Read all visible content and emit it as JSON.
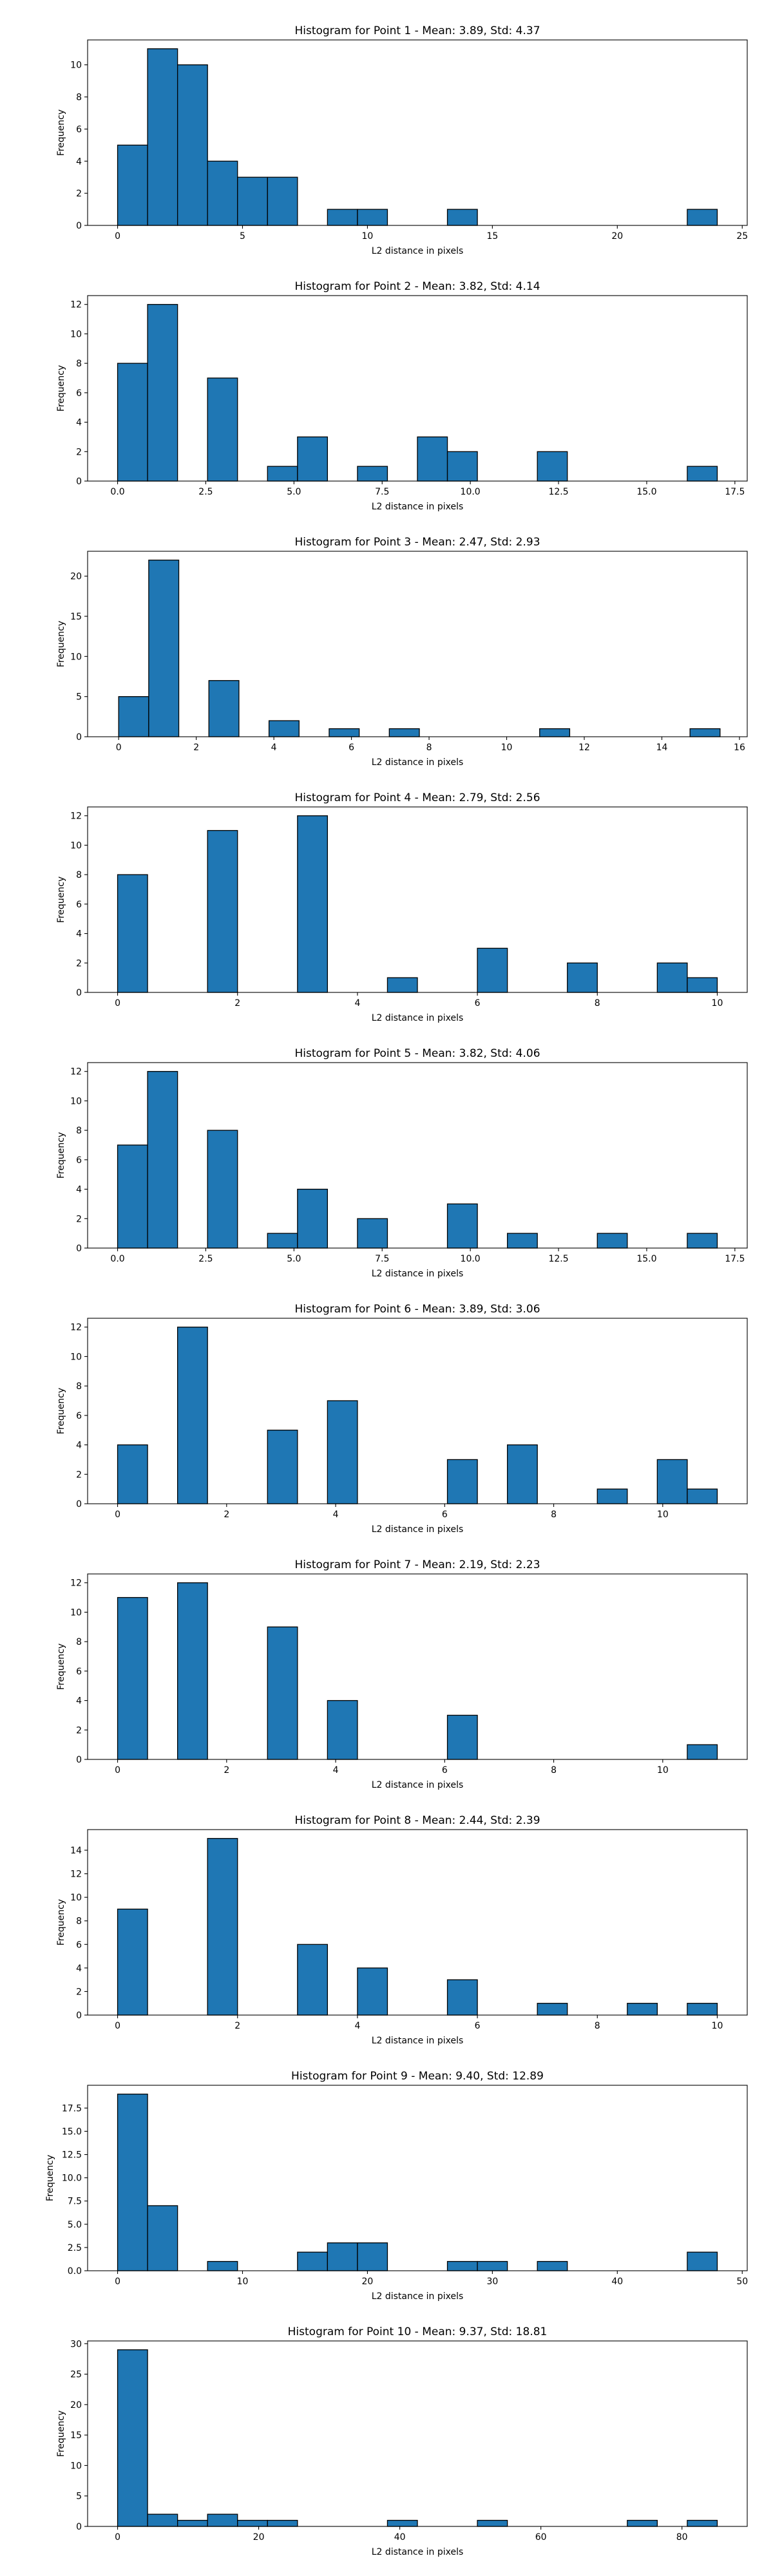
{
  "figure": {
    "bar_color": "#1f77b4",
    "edge_color": "#000000"
  },
  "chart_data": [
    {
      "type": "bar",
      "title": "Histogram for Point 1 - Mean: 3.89, Std: 4.37",
      "xlabel": "L2 distance in pixels",
      "ylabel": "Frequency",
      "xlim": [
        -1.2,
        25.2
      ],
      "ylim": [
        0,
        11.55
      ],
      "xticks": [
        0,
        5,
        10,
        15,
        20,
        25
      ],
      "xtick_labels": [
        "0",
        "5",
        "10",
        "15",
        "20",
        "25"
      ],
      "yticks": [
        0,
        2,
        4,
        6,
        8,
        10
      ],
      "ytick_labels": [
        "0",
        "2",
        "4",
        "6",
        "8",
        "10"
      ],
      "bin_edges": [
        0,
        1.2,
        2.4,
        3.6,
        4.8,
        6,
        7.2,
        8.4,
        9.6,
        10.8,
        12,
        13.2,
        14.4,
        15.6,
        16.8,
        18,
        19.2,
        20.4,
        21.6,
        22.8,
        24
      ],
      "values": [
        5,
        11,
        10,
        4,
        3,
        3,
        0,
        1,
        1,
        0,
        0,
        1,
        0,
        0,
        0,
        0,
        0,
        0,
        0,
        1
      ]
    },
    {
      "type": "bar",
      "title": "Histogram for Point 2 - Mean: 3.82, Std: 4.14",
      "xlabel": "L2 distance in pixels",
      "ylabel": "Frequency",
      "xlim": [
        -0.85,
        17.85
      ],
      "ylim": [
        0,
        12.6
      ],
      "xticks": [
        0,
        2.5,
        5,
        7.5,
        10,
        12.5,
        15,
        17.5
      ],
      "xtick_labels": [
        "0.0",
        "2.5",
        "5.0",
        "7.5",
        "10.0",
        "12.5",
        "15.0",
        "17.5"
      ],
      "yticks": [
        0,
        2,
        4,
        6,
        8,
        10,
        12
      ],
      "ytick_labels": [
        "0",
        "2",
        "4",
        "6",
        "8",
        "10",
        "12"
      ],
      "bin_edges": [
        0,
        0.85,
        1.7,
        2.55,
        3.4,
        4.25,
        5.1,
        5.95,
        6.8,
        7.65,
        8.5,
        9.35,
        10.2,
        11.05,
        11.9,
        12.75,
        13.6,
        14.45,
        15.3,
        16.15,
        17
      ],
      "values": [
        8,
        12,
        0,
        7,
        0,
        1,
        3,
        0,
        1,
        0,
        3,
        2,
        0,
        0,
        2,
        0,
        0,
        0,
        0,
        1
      ]
    },
    {
      "type": "bar",
      "title": "Histogram for Point 3 - Mean: 2.47, Std: 2.93",
      "xlabel": "L2 distance in pixels",
      "ylabel": "Frequency",
      "xlim": [
        -0.8,
        16.2
      ],
      "ylim": [
        0,
        23.1
      ],
      "xticks": [
        0,
        2,
        4,
        6,
        8,
        10,
        12,
        14,
        16
      ],
      "xtick_labels": [
        "0",
        "2",
        "4",
        "6",
        "8",
        "10",
        "12",
        "14",
        "16"
      ],
      "yticks": [
        0,
        5,
        10,
        15,
        20
      ],
      "ytick_labels": [
        "0",
        "5",
        "10",
        "15",
        "20"
      ],
      "bin_edges": [
        0,
        0.775,
        1.55,
        2.325,
        3.1,
        3.875,
        4.65,
        5.425,
        6.2,
        6.975,
        7.75,
        8.525,
        9.3,
        10.075,
        10.85,
        11.625,
        12.4,
        13.175,
        13.95,
        14.725,
        15.5
      ],
      "values": [
        5,
        22,
        0,
        7,
        0,
        2,
        0,
        1,
        0,
        1,
        0,
        0,
        0,
        0,
        1,
        0,
        0,
        0,
        0,
        1
      ]
    },
    {
      "type": "bar",
      "title": "Histogram for Point 4 - Mean: 2.79, Std: 2.56",
      "xlabel": "L2 distance in pixels",
      "ylabel": "Frequency",
      "xlim": [
        -0.5,
        10.5
      ],
      "ylim": [
        0,
        12.6
      ],
      "xticks": [
        0,
        2,
        4,
        6,
        8,
        10
      ],
      "xtick_labels": [
        "0",
        "2",
        "4",
        "6",
        "8",
        "10"
      ],
      "yticks": [
        0,
        2,
        4,
        6,
        8,
        10,
        12
      ],
      "ytick_labels": [
        "0",
        "2",
        "4",
        "6",
        "8",
        "10",
        "12"
      ],
      "bin_edges": [
        0,
        0.5,
        1,
        1.5,
        2,
        2.5,
        3,
        3.5,
        4,
        4.5,
        5,
        5.5,
        6,
        6.5,
        7,
        7.5,
        8,
        8.5,
        9,
        9.5,
        10
      ],
      "values": [
        8,
        0,
        0,
        11,
        0,
        0,
        12,
        0,
        0,
        1,
        0,
        0,
        3,
        0,
        0,
        2,
        0,
        0,
        2,
        1
      ]
    },
    {
      "type": "bar",
      "title": "Histogram for Point 5 - Mean: 3.82, Std: 4.06",
      "xlabel": "L2 distance in pixels",
      "ylabel": "Frequency",
      "xlim": [
        -0.85,
        17.85
      ],
      "ylim": [
        0,
        12.6
      ],
      "xticks": [
        0,
        2.5,
        5,
        7.5,
        10,
        12.5,
        15,
        17.5
      ],
      "xtick_labels": [
        "0.0",
        "2.5",
        "5.0",
        "7.5",
        "10.0",
        "12.5",
        "15.0",
        "17.5"
      ],
      "yticks": [
        0,
        2,
        4,
        6,
        8,
        10,
        12
      ],
      "ytick_labels": [
        "0",
        "2",
        "4",
        "6",
        "8",
        "10",
        "12"
      ],
      "bin_edges": [
        0,
        0.85,
        1.7,
        2.55,
        3.4,
        4.25,
        5.1,
        5.95,
        6.8,
        7.65,
        8.5,
        9.35,
        10.2,
        11.05,
        11.9,
        12.75,
        13.6,
        14.45,
        15.3,
        16.15,
        17
      ],
      "values": [
        7,
        12,
        0,
        8,
        0,
        1,
        4,
        0,
        2,
        0,
        0,
        3,
        0,
        1,
        0,
        0,
        1,
        0,
        0,
        1
      ]
    },
    {
      "type": "bar",
      "title": "Histogram for Point 6 - Mean: 3.89, Std: 3.06",
      "xlabel": "L2 distance in pixels",
      "ylabel": "Frequency",
      "xlim": [
        -0.55,
        11.55
      ],
      "ylim": [
        0,
        12.6
      ],
      "xticks": [
        0,
        2,
        4,
        6,
        8,
        10
      ],
      "xtick_labels": [
        "0",
        "2",
        "4",
        "6",
        "8",
        "10"
      ],
      "yticks": [
        0,
        2,
        4,
        6,
        8,
        10,
        12
      ],
      "ytick_labels": [
        "0",
        "2",
        "4",
        "6",
        "8",
        "10",
        "12"
      ],
      "bin_edges": [
        0,
        0.55,
        1.1,
        1.65,
        2.2,
        2.75,
        3.3,
        3.85,
        4.4,
        4.95,
        5.5,
        6.05,
        6.6,
        7.15,
        7.7,
        8.25,
        8.8,
        9.35,
        9.9,
        10.45,
        11
      ],
      "values": [
        4,
        0,
        12,
        0,
        0,
        5,
        0,
        7,
        0,
        0,
        0,
        3,
        0,
        4,
        0,
        0,
        1,
        0,
        3,
        1
      ]
    },
    {
      "type": "bar",
      "title": "Histogram for Point 7 - Mean: 2.19, Std: 2.23",
      "xlabel": "L2 distance in pixels",
      "ylabel": "Frequency",
      "xlim": [
        -0.55,
        11.55
      ],
      "ylim": [
        0,
        12.6
      ],
      "xticks": [
        0,
        2,
        4,
        6,
        8,
        10
      ],
      "xtick_labels": [
        "0",
        "2",
        "4",
        "6",
        "8",
        "10"
      ],
      "yticks": [
        0,
        2,
        4,
        6,
        8,
        10,
        12
      ],
      "ytick_labels": [
        "0",
        "2",
        "4",
        "6",
        "8",
        "10",
        "12"
      ],
      "bin_edges": [
        0,
        0.55,
        1.1,
        1.65,
        2.2,
        2.75,
        3.3,
        3.85,
        4.4,
        4.95,
        5.5,
        6.05,
        6.6,
        7.15,
        7.7,
        8.25,
        8.8,
        9.35,
        9.9,
        10.45,
        11
      ],
      "values": [
        11,
        0,
        12,
        0,
        0,
        9,
        0,
        4,
        0,
        0,
        0,
        3,
        0,
        0,
        0,
        0,
        0,
        0,
        0,
        1
      ]
    },
    {
      "type": "bar",
      "title": "Histogram for Point 8 - Mean: 2.44, Std: 2.39",
      "xlabel": "L2 distance in pixels",
      "ylabel": "Frequency",
      "xlim": [
        -0.5,
        10.5
      ],
      "ylim": [
        0,
        15.75
      ],
      "xticks": [
        0,
        2,
        4,
        6,
        8,
        10
      ],
      "xtick_labels": [
        "0",
        "2",
        "4",
        "6",
        "8",
        "10"
      ],
      "yticks": [
        0,
        2,
        4,
        6,
        8,
        10,
        12,
        14
      ],
      "ytick_labels": [
        "0",
        "2",
        "4",
        "6",
        "8",
        "10",
        "12",
        "14"
      ],
      "bin_edges": [
        0,
        0.5,
        1,
        1.5,
        2,
        2.5,
        3,
        3.5,
        4,
        4.5,
        5,
        5.5,
        6,
        6.5,
        7,
        7.5,
        8,
        8.5,
        9,
        9.5,
        10
      ],
      "values": [
        9,
        0,
        0,
        15,
        0,
        0,
        6,
        0,
        4,
        0,
        0,
        3,
        0,
        0,
        1,
        0,
        0,
        1,
        0,
        1
      ]
    },
    {
      "type": "bar",
      "title": "Histogram for Point 9 - Mean: 9.40, Std: 12.89",
      "xlabel": "L2 distance in pixels",
      "ylabel": "Frequency",
      "xlim": [
        -2.4,
        50.4
      ],
      "ylim": [
        0,
        19.95
      ],
      "xticks": [
        0,
        10,
        20,
        30,
        40,
        50
      ],
      "xtick_labels": [
        "0",
        "10",
        "20",
        "30",
        "40",
        "50"
      ],
      "yticks": [
        0,
        2.5,
        5,
        7.5,
        10,
        12.5,
        15,
        17.5
      ],
      "ytick_labels": [
        "0.0",
        "2.5",
        "5.0",
        "7.5",
        "10.0",
        "12.5",
        "15.0",
        "17.5"
      ],
      "bin_edges": [
        0,
        2.4,
        4.8,
        7.2,
        9.6,
        12,
        14.4,
        16.8,
        19.2,
        21.6,
        24,
        26.4,
        28.8,
        31.2,
        33.6,
        36,
        38.4,
        40.8,
        43.2,
        45.6,
        48
      ],
      "values": [
        19,
        7,
        0,
        1,
        0,
        0,
        2,
        3,
        3,
        0,
        0,
        1,
        1,
        0,
        1,
        0,
        0,
        0,
        0,
        2
      ]
    },
    {
      "type": "bar",
      "title": "Histogram for Point 10 - Mean: 9.37, Std: 18.81",
      "xlabel": "L2 distance in pixels",
      "ylabel": "Frequency",
      "xlim": [
        -4.25,
        89.25
      ],
      "ylim": [
        0,
        30.45
      ],
      "xticks": [
        0,
        20,
        40,
        60,
        80
      ],
      "xtick_labels": [
        "0",
        "20",
        "40",
        "60",
        "80"
      ],
      "yticks": [
        0,
        5,
        10,
        15,
        20,
        25,
        30
      ],
      "ytick_labels": [
        "0",
        "5",
        "10",
        "15",
        "20",
        "25",
        "30"
      ],
      "bin_edges": [
        0,
        4.25,
        8.5,
        12.75,
        17,
        21.25,
        25.5,
        29.75,
        34,
        38.25,
        42.5,
        46.75,
        51,
        55.25,
        59.5,
        63.75,
        68,
        72.25,
        76.5,
        80.75,
        85
      ],
      "values": [
        29,
        2,
        1,
        2,
        1,
        1,
        0,
        0,
        0,
        1,
        0,
        0,
        1,
        0,
        0,
        0,
        0,
        1,
        0,
        1
      ]
    }
  ]
}
